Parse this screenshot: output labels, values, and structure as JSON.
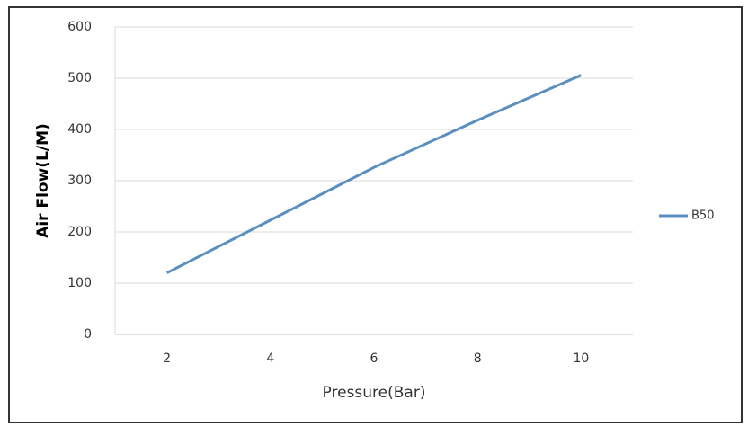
{
  "chart_data": {
    "type": "line",
    "x_label": "Pressure(Bar)",
    "y_label": "Air Flow(L/M)",
    "categories": [
      "2",
      "4",
      "6",
      "8",
      "10"
    ],
    "series": [
      {
        "name": "B50",
        "color": "#5b8fbf",
        "values": [
          120,
          223,
          326,
          418,
          506
        ]
      }
    ],
    "ylim": [
      0,
      600
    ],
    "yticks": [
      0,
      100,
      200,
      300,
      400,
      500,
      600
    ],
    "grid": true,
    "legend": "right"
  }
}
